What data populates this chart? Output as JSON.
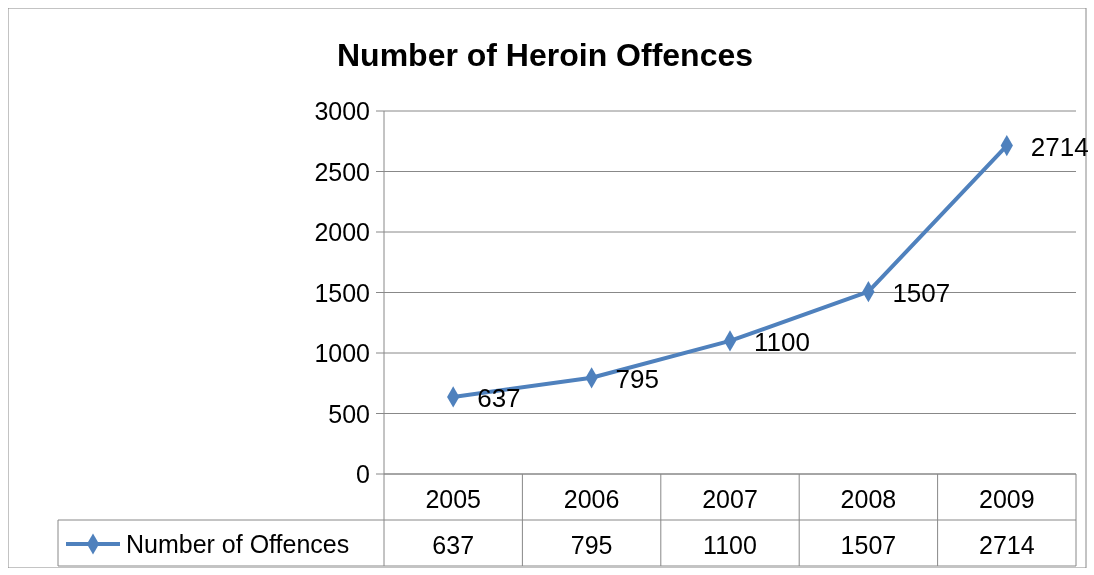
{
  "chart_data": {
    "type": "line",
    "title": "Number of Heroin Offences",
    "categories": [
      "2005",
      "2006",
      "2007",
      "2008",
      "2009"
    ],
    "series": [
      {
        "name": "Number of Offences",
        "color": "#4f81bd",
        "values": [
          637,
          795,
          1100,
          1507,
          2714
        ],
        "value_labels": [
          "637",
          "795",
          "1100",
          "1507",
          "2714"
        ]
      }
    ],
    "ylim": [
      0,
      3000
    ],
    "yticks": [
      0,
      500,
      1000,
      1500,
      2000,
      2500,
      3000
    ],
    "grid": "y",
    "marker": "diamond",
    "legend": "bottom",
    "annotations": [
      "637",
      "795",
      "1100",
      "1507",
      "2714"
    ]
  }
}
